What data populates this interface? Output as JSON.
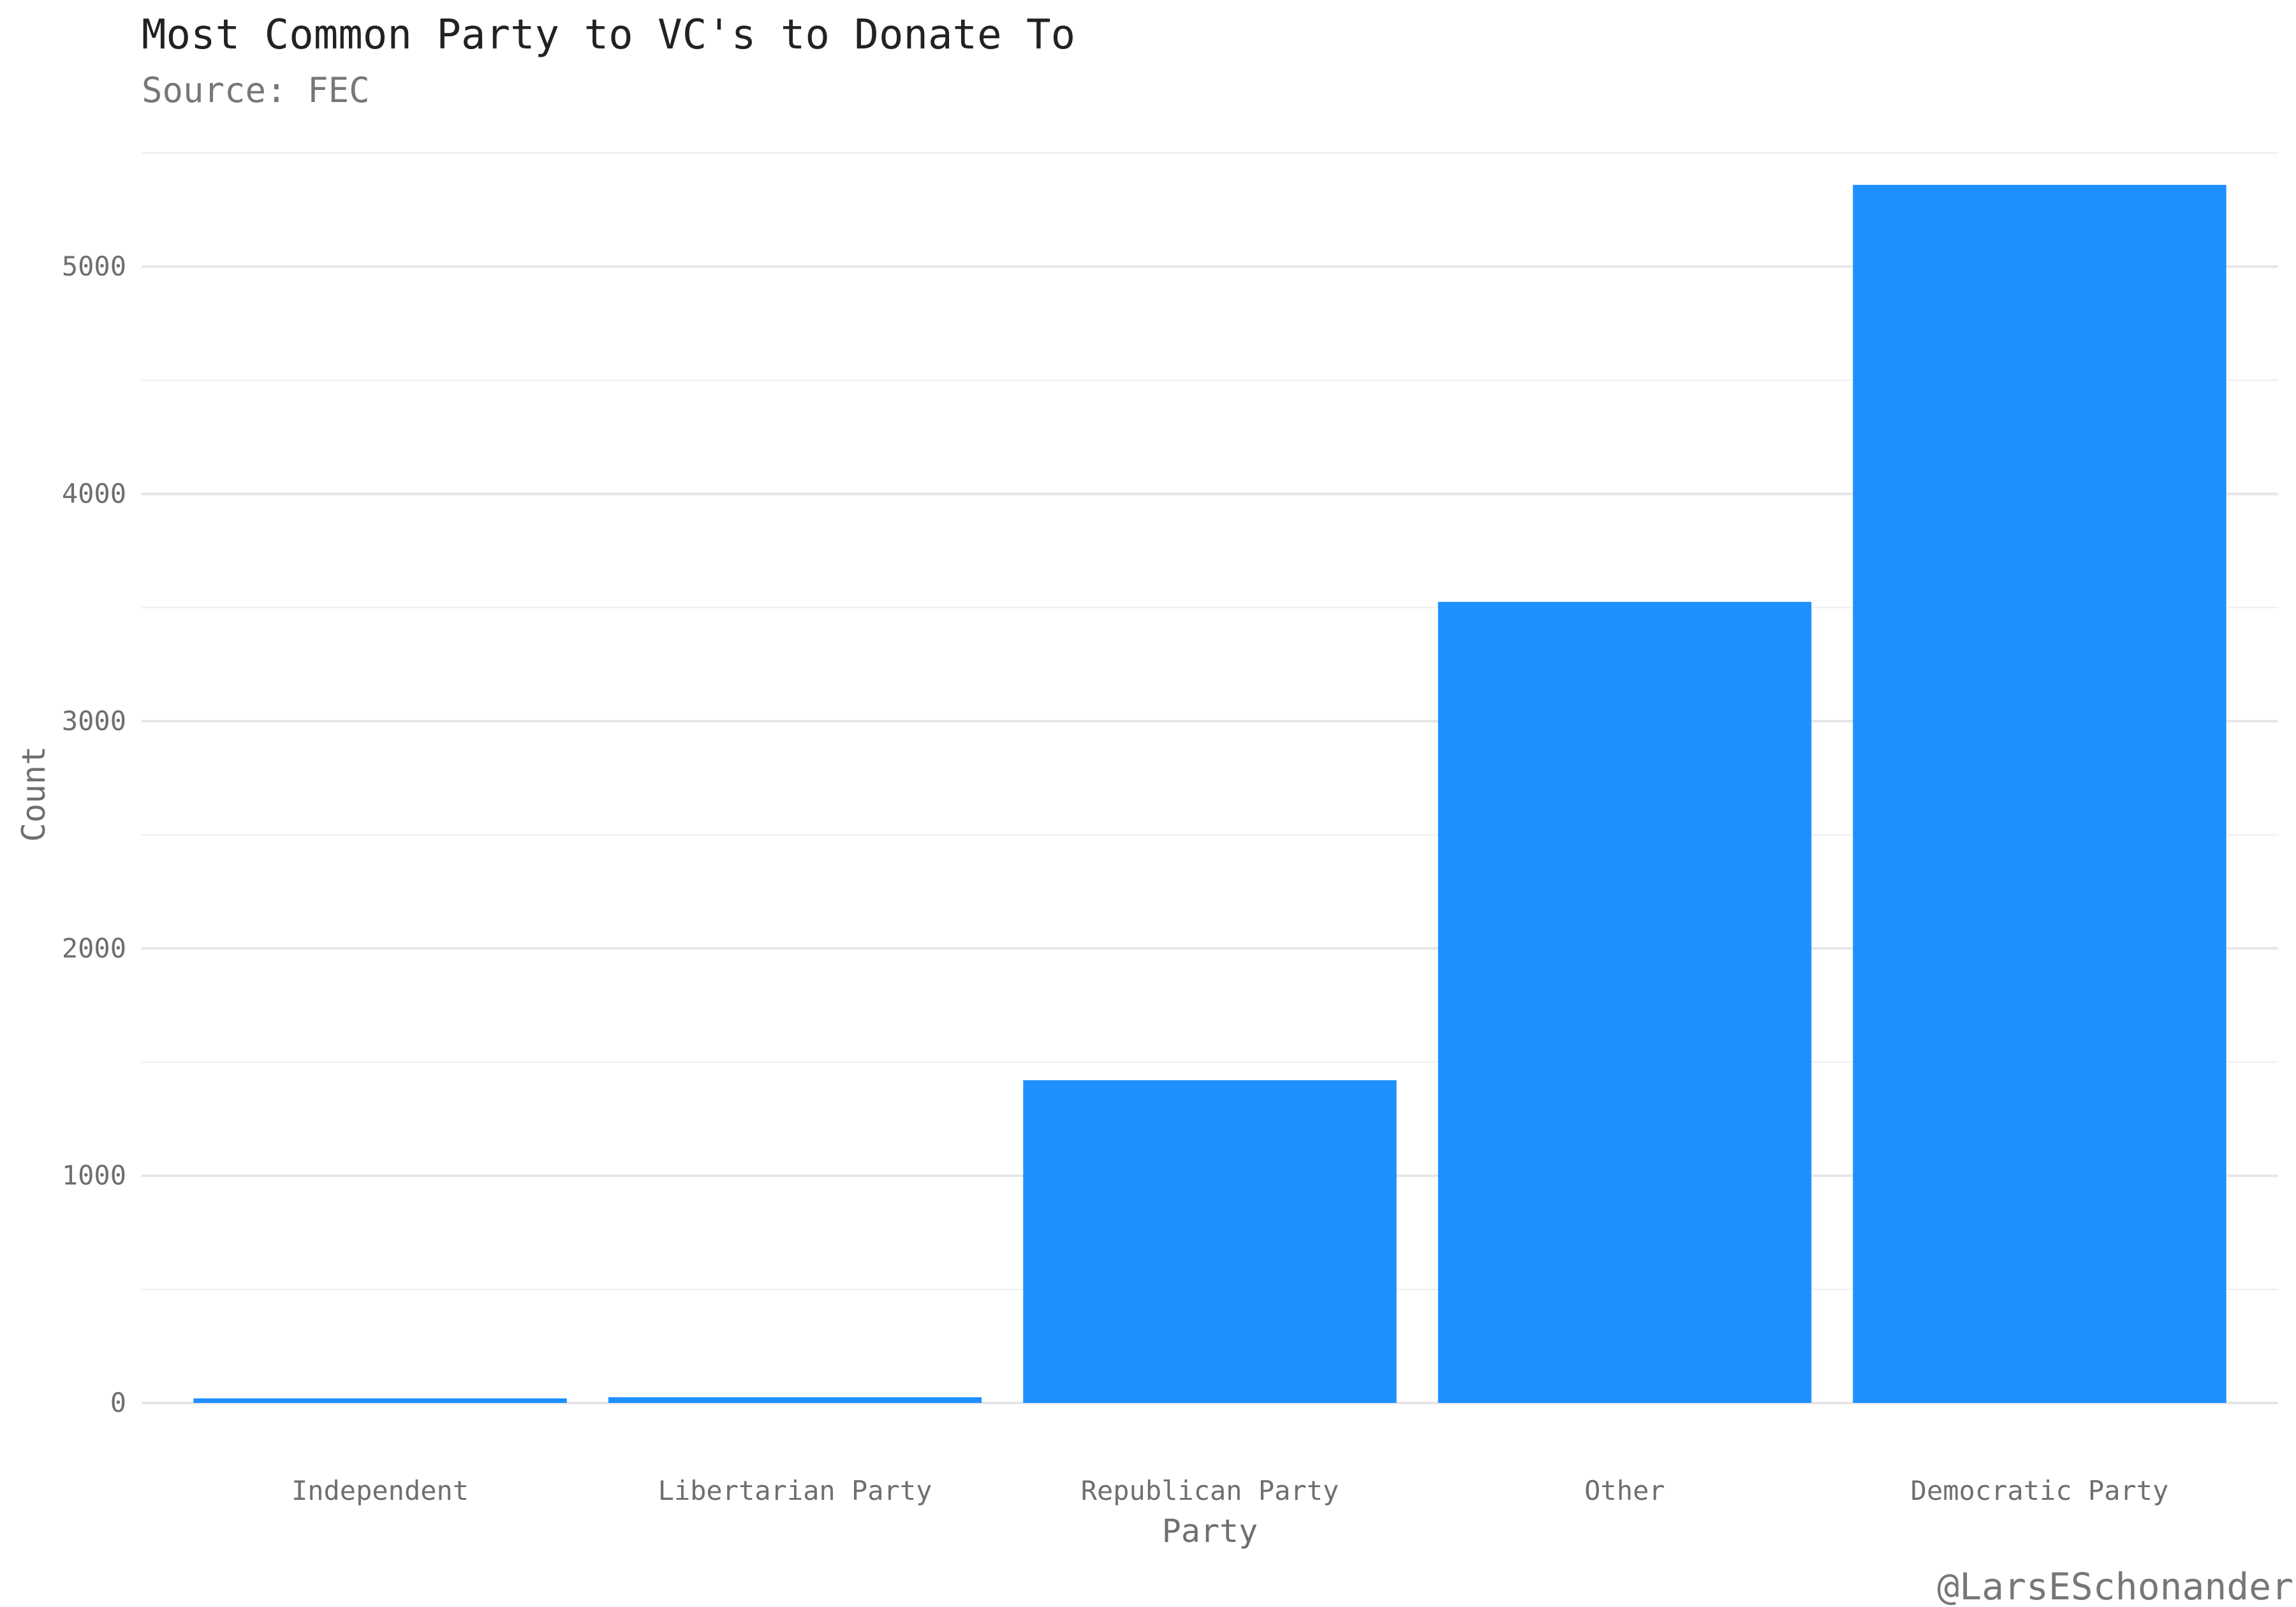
{
  "chart_data": {
    "type": "bar",
    "title": "Most Common Party to VC's to Donate To",
    "subtitle": "Source: FEC",
    "xlabel": "Party",
    "ylabel": "Count",
    "caption": "@LarsESchonander",
    "categories": [
      "Independent",
      "Libertarian Party",
      "Republican Party",
      "Other",
      "Democratic Party"
    ],
    "values": [
      20,
      25,
      1420,
      3525,
      5360
    ],
    "ylim": [
      0,
      5500
    ],
    "yticks": [
      0,
      1000,
      2000,
      3000,
      4000,
      5000
    ],
    "ytick_labels": [
      "0",
      "1000",
      "2000",
      "3000",
      "4000",
      "5000"
    ],
    "bar_color": "#1E90FF",
    "grid": true,
    "legend": "none"
  }
}
